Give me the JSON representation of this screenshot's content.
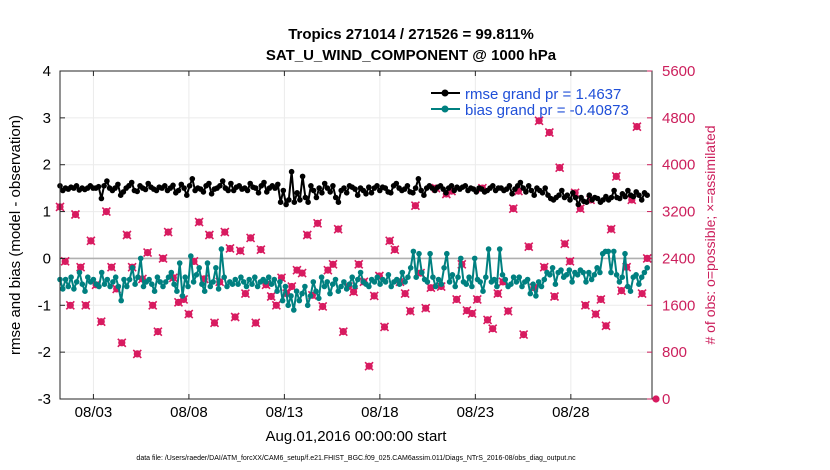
{
  "chart_data": {
    "type": "line",
    "title": "Tropics 271014 / 271526 = 99.811%",
    "subtitle": "SAT_U_WIND_COMPONENT @ 1000 hPa",
    "xlabel": "Aug.01,2016 00:00:00 start",
    "ylabel": "rmse and bias (model - observation)",
    "y2label": "# of obs: o=possible; ×=assimilated",
    "footer": "data file: /Users/raeder/DAI/ATM_forcXX/CAM6_setup/f.e21.FHIST_BGC.f09_025.CAM6assim.011/Diags_NTrS_2016-08/obs_diag_output.nc",
    "xlim": [
      1.25,
      32.25
    ],
    "ylim": [
      -3,
      4
    ],
    "y2lim": [
      0,
      5600
    ],
    "x_tick_labels": [
      "08/03",
      "08/08",
      "08/13",
      "08/18",
      "08/23",
      "08/28"
    ],
    "x_ticks": [
      3,
      8,
      13,
      18,
      23,
      28
    ],
    "y_tick_labels": [
      "-3",
      "-2",
      "-1",
      "0",
      "1",
      "2",
      "3",
      "4"
    ],
    "y2_tick_labels": [
      "0",
      "800",
      "1600",
      "2400",
      "3200",
      "4000",
      "4800",
      "5600"
    ],
    "colors": {
      "rmse": "#000000",
      "bias": "#008080",
      "obs": "#d81b60",
      "zero": "#b0b0b0",
      "right_axis": "#cc1f5c",
      "legend_text": "#1f4fd8"
    },
    "series": [
      {
        "name": "rmse grand pr = 1.4637",
        "axis": "left",
        "values": [
          1.55,
          1.45,
          1.5,
          1.48,
          1.52,
          1.5,
          1.55,
          1.46,
          1.5,
          1.47,
          1.5,
          1.55,
          1.5,
          1.5,
          1.53,
          1.28,
          1.55,
          1.65,
          1.5,
          1.45,
          1.5,
          1.58,
          1.35,
          1.42,
          1.5,
          1.55,
          1.62,
          1.45,
          1.43,
          1.55,
          1.5,
          1.47,
          1.6,
          1.52,
          1.48,
          1.45,
          1.52,
          1.5,
          1.55,
          1.45,
          1.5,
          1.56,
          1.4,
          1.45,
          1.58,
          1.5,
          1.35,
          1.55,
          1.7,
          1.45,
          1.5,
          1.48,
          1.42,
          1.55,
          1.6,
          1.38,
          1.48,
          1.5,
          1.55,
          1.65,
          1.5,
          1.45,
          1.6,
          1.45,
          1.52,
          1.55,
          1.48,
          1.5,
          1.45,
          1.6,
          1.52,
          1.5,
          1.4,
          1.55,
          1.62,
          1.42,
          1.5,
          1.55,
          1.5,
          1.58,
          1.2,
          1.45,
          1.15,
          1.25,
          1.85,
          1.2,
          1.4,
          1.25,
          1.75,
          1.3,
          1.2,
          1.55,
          1.45,
          1.3,
          1.5,
          1.4,
          1.6,
          1.5,
          1.42,
          1.55,
          1.3,
          1.2,
          1.45,
          1.5,
          1.4,
          1.55,
          1.52,
          1.48,
          1.35,
          1.5,
          1.45,
          1.38,
          1.52,
          1.4,
          1.5,
          1.55,
          1.45,
          1.52,
          1.5,
          1.42,
          1.4,
          1.55,
          1.6,
          1.5,
          1.45,
          1.48,
          1.55,
          1.42,
          1.4,
          1.5,
          1.7,
          1.45,
          1.35,
          1.5,
          1.55,
          1.5,
          1.45,
          1.52,
          1.55,
          1.48,
          1.4,
          1.5,
          1.55,
          1.45,
          1.52,
          1.48,
          1.52,
          1.55,
          1.45,
          1.5,
          1.48,
          1.42,
          1.5,
          1.48,
          1.42,
          1.45,
          1.5,
          1.55,
          1.45,
          1.5,
          1.5,
          1.45,
          1.48,
          1.55,
          1.38,
          1.48,
          1.55,
          1.62,
          1.5,
          1.42,
          1.55,
          1.45,
          1.35,
          1.5,
          1.45,
          1.4,
          1.5,
          1.35,
          1.28,
          1.25,
          1.3,
          1.35,
          1.45,
          1.3,
          1.35,
          1.25,
          1.4,
          1.3,
          1.15,
          1.3,
          1.22,
          1.2,
          1.35,
          1.25,
          1.3,
          1.28,
          1.2,
          1.25,
          1.32,
          1.25,
          1.3,
          1.45,
          1.3,
          1.28,
          1.38,
          1.32,
          1.45,
          1.35,
          1.32,
          1.42,
          1.35,
          1.25,
          1.4,
          1.35
        ]
      },
      {
        "name": "bias grand pr = -0.40873",
        "axis": "left",
        "values": [
          -0.45,
          -0.65,
          -0.45,
          -0.6,
          -0.4,
          -0.65,
          -0.5,
          -0.3,
          -0.55,
          -0.7,
          -0.4,
          -0.5,
          -0.45,
          -0.55,
          -0.6,
          -0.3,
          -0.55,
          -0.45,
          -0.6,
          -0.5,
          -0.4,
          -0.6,
          -0.9,
          -0.45,
          -0.6,
          -0.45,
          -0.2,
          -0.55,
          -0.4,
          0.0,
          -0.6,
          -0.5,
          -0.45,
          -0.55,
          -0.7,
          -0.4,
          -0.5,
          -0.6,
          -0.5,
          -0.4,
          -0.3,
          -0.55,
          -0.7,
          -0.1,
          -0.8,
          -0.4,
          -0.6,
          0.05,
          -0.5,
          -0.35,
          -0.2,
          -0.55,
          -0.7,
          -0.1,
          -0.6,
          -0.5,
          -0.2,
          -0.65,
          0.2,
          -0.4,
          -0.6,
          -0.5,
          -0.55,
          -0.45,
          -0.55,
          -0.4,
          -0.5,
          -0.6,
          -0.45,
          -0.55,
          -0.4,
          -0.6,
          -0.5,
          -0.45,
          -0.5,
          -0.4,
          -0.55,
          -0.45,
          -0.7,
          -0.5,
          -0.9,
          -0.6,
          -1.0,
          -0.8,
          -1.1,
          -0.7,
          -0.9,
          -0.75,
          -0.6,
          -1.0,
          -0.8,
          -0.5,
          -0.7,
          -0.85,
          -0.4,
          -0.6,
          -0.5,
          -0.75,
          -0.55,
          -0.45,
          -0.7,
          -0.6,
          -0.5,
          -0.65,
          -0.55,
          -0.4,
          -0.6,
          -0.45,
          -0.3,
          -0.5,
          -0.55,
          -0.6,
          -0.45,
          -0.5,
          -0.4,
          -0.55,
          -0.45,
          -0.5,
          -0.35,
          -0.6,
          -0.5,
          -0.45,
          -0.55,
          -0.3,
          -0.5,
          -0.4,
          -0.2,
          0.15,
          -0.4,
          0.1,
          -0.3,
          -0.45,
          -0.5,
          0.1,
          -0.4,
          -0.6,
          -0.45,
          -0.55,
          -0.2,
          0.1,
          -0.5,
          -0.35,
          -0.6,
          -0.4,
          0.0,
          -0.5,
          -0.55,
          -0.4,
          -0.6,
          0.0,
          -0.45,
          -0.5,
          -0.7,
          -0.4,
          0.2,
          -0.5,
          -0.45,
          -0.6,
          0.2,
          -0.35,
          -0.45,
          -0.6,
          -0.55,
          -0.4,
          -0.5,
          -0.4,
          -0.6,
          -0.5,
          -0.45,
          -0.75,
          -0.55,
          -0.8,
          -0.5,
          -0.6,
          -0.45,
          -0.3,
          -0.35,
          -0.2,
          -0.55,
          -0.3,
          -0.25,
          -0.4,
          -0.35,
          -0.25,
          -0.5,
          -0.3,
          -0.35,
          -0.25,
          -0.3,
          -0.5,
          -0.3,
          -0.45,
          -0.35,
          -0.2,
          -0.3,
          0.1,
          0.15,
          0.15,
          -0.3,
          0.15,
          -0.35,
          -0.5,
          -0.4,
          0.1,
          -0.6,
          -0.7,
          -0.4,
          -0.35,
          -0.55,
          -0.4,
          -0.3,
          -0.2
        ]
      }
    ],
    "obs_counts": {
      "name": "# of obs",
      "axis": "right",
      "values": [
        3280,
        2350,
        1600,
        3150,
        2250,
        1600,
        2700,
        1950,
        1320,
        3200,
        2250,
        1880,
        960,
        2800,
        2250,
        770,
        2050,
        2500,
        1600,
        1150,
        2400,
        2850,
        2070,
        1650,
        1700,
        1450,
        2350,
        3020,
        2050,
        2800,
        1300,
        2000,
        2850,
        2570,
        1400,
        2530,
        1800,
        2750,
        1300,
        2550,
        1950,
        1750,
        1600,
        2070,
        1800,
        1920,
        2200,
        2150,
        2800,
        1770,
        3000,
        1580,
        2200,
        2300,
        2900,
        1150,
        1920,
        1830,
        2300,
        2000,
        560,
        1760,
        2100,
        1230,
        2700,
        2550,
        2000,
        1800,
        1500,
        3300,
        2150,
        1550,
        1900,
        3600,
        1920,
        3500,
        3550,
        1700,
        2300,
        1510,
        1460,
        1700,
        3600,
        1350,
        1200,
        1800,
        2000,
        1500,
        3250,
        3550,
        1100,
        2600,
        1900,
        4750,
        2250,
        4550,
        1750,
        3950,
        2650,
        2350,
        3520,
        3250,
        1600,
        3400,
        1450,
        1700,
        1250,
        2900,
        3800,
        1850,
        2250,
        3400,
        4650,
        1800,
        2400
      ]
    }
  },
  "legend": {
    "rmse_label": "rmse grand pr = 1.4637",
    "bias_label": "bias grand pr = -0.40873"
  }
}
